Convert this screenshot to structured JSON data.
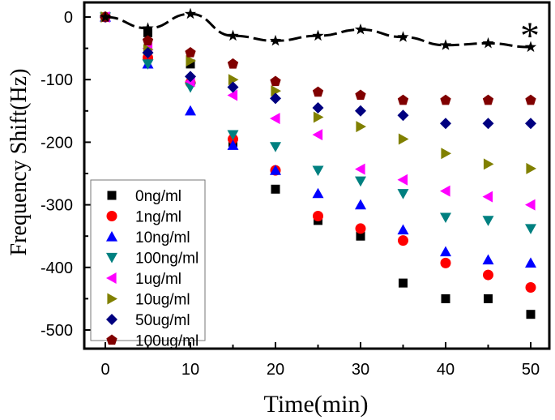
{
  "chart_data": {
    "type": "scatter",
    "xlabel": "Time(min)",
    "ylabel": "Frequency Shift(Hz)",
    "xlim": [
      -2.4,
      52.5
    ],
    "ylim": [
      -532,
      25
    ],
    "xticks": [
      0,
      10,
      20,
      30,
      40,
      50
    ],
    "yticks": [
      0,
      -100,
      -200,
      -300,
      -400,
      -500
    ],
    "legend_position": "bottom-left",
    "annotation": "*",
    "x": [
      0,
      5,
      10,
      15,
      20,
      25,
      30,
      35,
      40,
      45,
      50
    ],
    "series": [
      {
        "name": "0ng/ml",
        "marker": "square",
        "color": "#000000",
        "values": [
          0,
          -25,
          -75,
          -200,
          -275,
          -325,
          -350,
          -425,
          -450,
          -450,
          -475
        ]
      },
      {
        "name": "1ng/ml",
        "marker": "circle",
        "color": "#ff0000",
        "values": [
          0,
          -65,
          -105,
          -195,
          -245,
          -318,
          -338,
          -357,
          -393,
          -412,
          -432
        ]
      },
      {
        "name": "10ng/ml",
        "marker": "triangle-up",
        "color": "#0000ff",
        "values": [
          0,
          -75,
          -150,
          -205,
          -245,
          -282,
          -300,
          -340,
          -375,
          -388,
          -393
        ]
      },
      {
        "name": "100ng/ml",
        "marker": "triangle-down",
        "color": "#008080",
        "values": [
          0,
          -75,
          -112,
          -188,
          -207,
          -245,
          -262,
          -282,
          -320,
          -325,
          -338
        ]
      },
      {
        "name": "1ug/ml",
        "marker": "triangle-left",
        "color": "#ff00ff",
        "values": [
          0,
          -50,
          -103,
          -125,
          -162,
          -188,
          -243,
          -260,
          -278,
          -287,
          -300
        ]
      },
      {
        "name": "10ug/ml",
        "marker": "triangle-right",
        "color": "#808000",
        "values": [
          0,
          -52,
          -70,
          -100,
          -118,
          -160,
          -175,
          -195,
          -218,
          -235,
          -242
        ]
      },
      {
        "name": "50ug/ml",
        "marker": "diamond",
        "color": "#000080",
        "values": [
          0,
          -57,
          -95,
          -112,
          -130,
          -145,
          -150,
          -157,
          -170,
          -170,
          -170
        ]
      },
      {
        "name": "100ug/ml",
        "marker": "pentagon",
        "color": "#800000",
        "values": [
          0,
          -38,
          -57,
          -75,
          -103,
          -120,
          -125,
          -133,
          -133,
          -133,
          -133
        ]
      },
      {
        "marker": "star",
        "color": "#000000",
        "line": "dashed",
        "values": [
          0,
          -18,
          5,
          -30,
          -38,
          -30,
          -20,
          -32,
          -45,
          -42,
          -48
        ]
      }
    ]
  }
}
